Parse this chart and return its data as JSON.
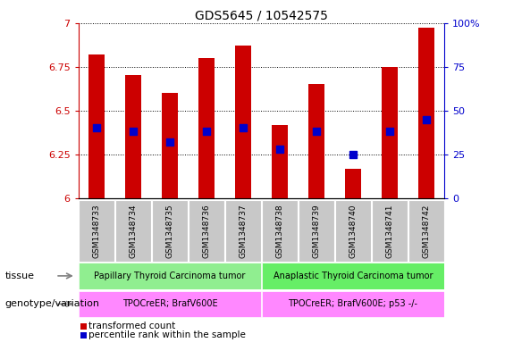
{
  "title": "GDS5645 / 10542575",
  "samples": [
    "GSM1348733",
    "GSM1348734",
    "GSM1348735",
    "GSM1348736",
    "GSM1348737",
    "GSM1348738",
    "GSM1348739",
    "GSM1348740",
    "GSM1348741",
    "GSM1348742"
  ],
  "transformed_counts": [
    6.82,
    6.7,
    6.6,
    6.8,
    6.87,
    6.42,
    6.65,
    6.17,
    6.75,
    6.97
  ],
  "percentile_ranks": [
    40,
    38,
    32,
    38,
    40,
    28,
    38,
    25,
    38,
    45
  ],
  "ylim_left": [
    6.0,
    7.0
  ],
  "ylim_right": [
    0,
    100
  ],
  "yticks_left": [
    6.0,
    6.25,
    6.5,
    6.75,
    7.0
  ],
  "ytick_labels_left": [
    "6",
    "6.25",
    "6.5",
    "6.75",
    "7"
  ],
  "yticks_right": [
    0,
    25,
    50,
    75,
    100
  ],
  "ytick_labels_right": [
    "0",
    "25",
    "50",
    "75",
    "100%"
  ],
  "bar_color": "#cc0000",
  "dot_color": "#0000cc",
  "bar_width": 0.45,
  "dot_size": 28,
  "grid_color": "black",
  "tissue_group1_samples": [
    0,
    1,
    2,
    3,
    4
  ],
  "tissue_group2_samples": [
    5,
    6,
    7,
    8,
    9
  ],
  "tissue_label1": "Papillary Thyroid Carcinoma tumor",
  "tissue_label2": "Anaplastic Thyroid Carcinoma tumor",
  "tissue_color1": "#90ee90",
  "tissue_color2": "#66ee66",
  "genotype_label1": "TPOCreER; BrafV600E",
  "genotype_label2": "TPOCreER; BrafV600E; p53 -/-",
  "genotype_color": "#ff88ff",
  "tissue_row_label": "tissue",
  "genotype_row_label": "genotype/variation",
  "legend_red_label": "transformed count",
  "legend_blue_label": "percentile rank within the sample",
  "left_axis_color": "#cc0000",
  "right_axis_color": "#0000cc",
  "tick_bg_color": "#c8c8c8",
  "fig_width": 5.65,
  "fig_height": 3.93
}
